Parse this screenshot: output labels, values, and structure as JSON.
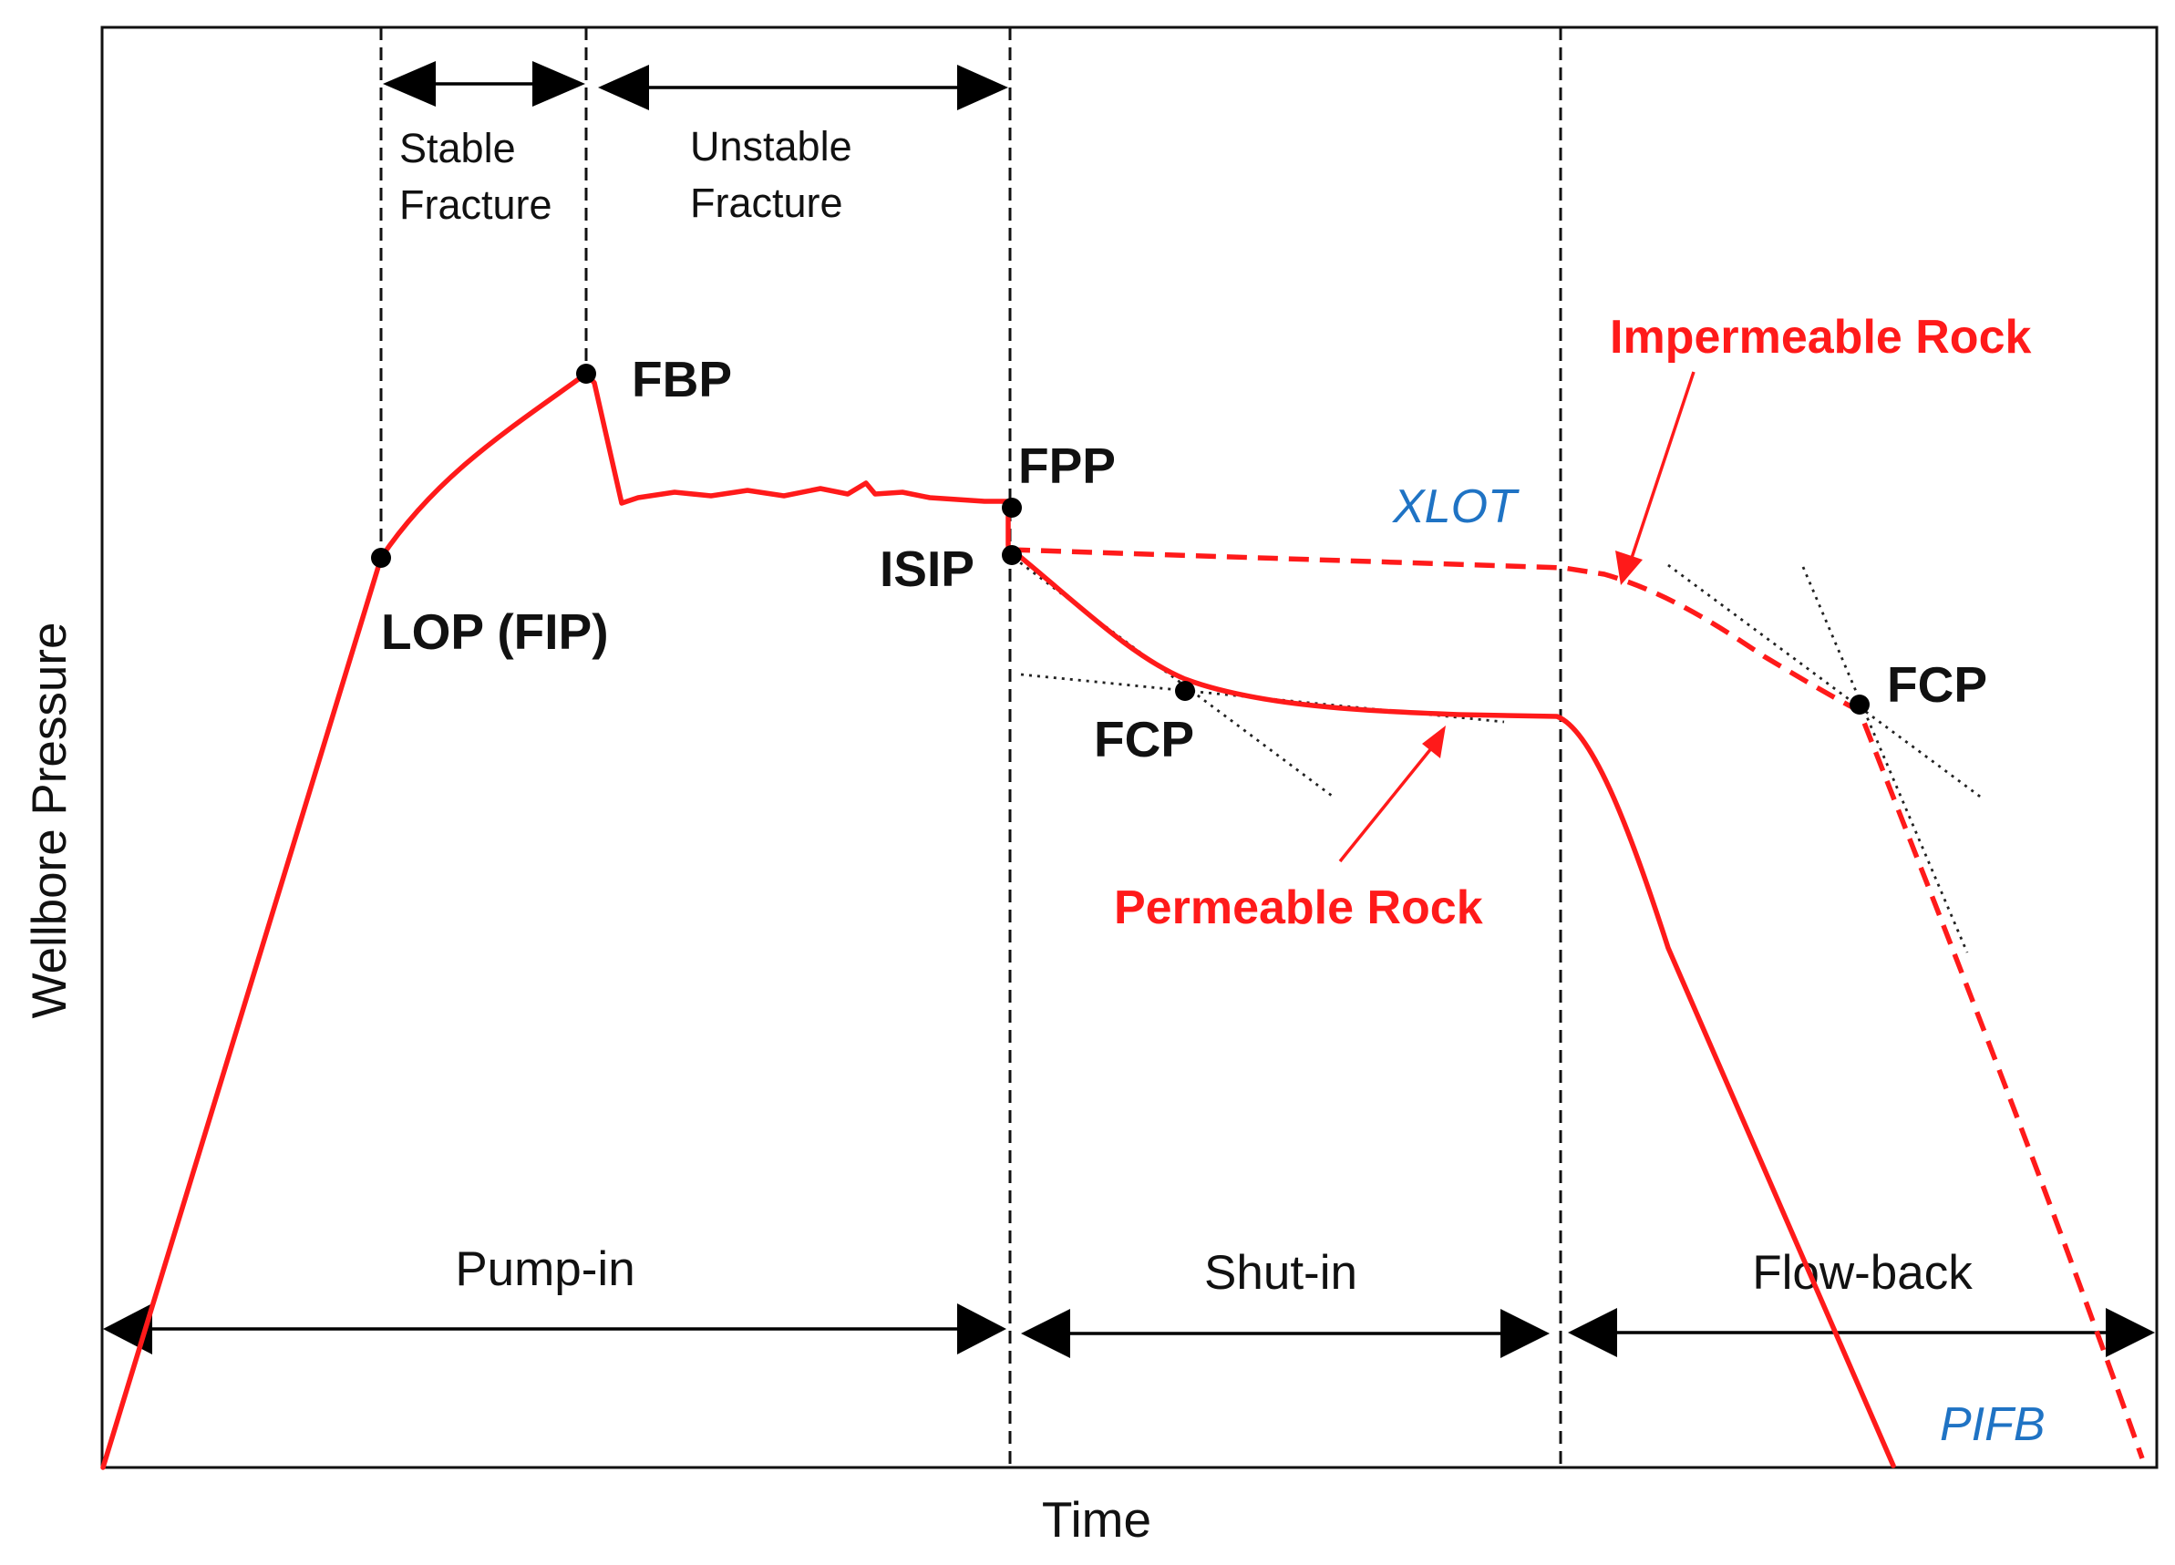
{
  "diagram": {
    "axes": {
      "x_label": "Time",
      "y_label": "Wellbore Pressure"
    },
    "phases": {
      "pump_in": "Pump-in",
      "shut_in": "Shut-in",
      "flow_back": "Flow-back"
    },
    "fracture": {
      "stable": [
        "Stable",
        "Fracture"
      ],
      "unstable": [
        "Unstable",
        "Fracture"
      ]
    },
    "points": {
      "lop": "LOP (FIP)",
      "fbp": "FBP",
      "fpp": "FPP",
      "isip": "ISIP",
      "fcp_permeable": "FCP",
      "fcp_impermeable": "FCP"
    },
    "rock_types": {
      "impermeable": "Impermeable Rock",
      "permeable": "Permeable Rock"
    },
    "test_types": {
      "xlot": "XLOT",
      "pifb": "PIFB"
    },
    "colors": {
      "curve": "#ff1a1a",
      "test_label": "#1f73c4",
      "ink": "#111111"
    }
  }
}
